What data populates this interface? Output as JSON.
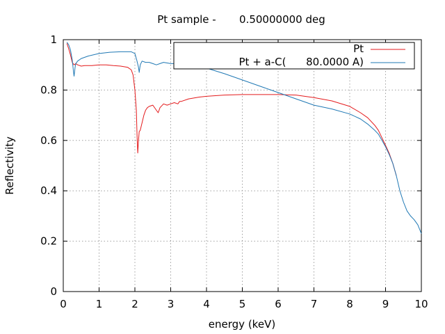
{
  "chart_data": {
    "type": "line",
    "title": "Pt sample -       0.50000000 deg",
    "xlabel": "energy (keV)",
    "ylabel": "Reflectivity",
    "xlim": [
      0,
      10
    ],
    "ylim": [
      0,
      1
    ],
    "x_ticks": [
      "0",
      "1",
      "2",
      "3",
      "4",
      "5",
      "6",
      "7",
      "8",
      "9",
      "10"
    ],
    "y_ticks": [
      "0",
      "0.2",
      "0.4",
      "0.6",
      "0.8",
      "1"
    ],
    "grid": true,
    "legend_position": "top-right",
    "series": [
      {
        "name": "Pt",
        "color": "#e41a1c",
        "x": [
          0.1,
          0.15,
          0.2,
          0.25,
          0.3,
          0.35,
          0.4,
          0.5,
          0.6,
          0.8,
          1.0,
          1.2,
          1.4,
          1.6,
          1.8,
          1.9,
          1.95,
          2.0,
          2.04,
          2.06,
          2.08,
          2.1,
          2.12,
          2.15,
          2.2,
          2.25,
          2.3,
          2.35,
          2.4,
          2.5,
          2.6,
          2.65,
          2.7,
          2.8,
          2.9,
          3.0,
          3.1,
          3.2,
          3.25,
          3.3,
          3.5,
          3.8,
          4.0,
          4.5,
          5.0,
          5.5,
          6.0,
          6.5,
          7.0,
          7.5,
          8.0,
          8.3,
          8.5,
          8.7,
          8.8,
          8.9,
          9.0,
          9.1,
          9.2,
          9.3
        ],
        "y": [
          0.985,
          0.965,
          0.94,
          0.91,
          0.9,
          0.905,
          0.9,
          0.895,
          0.897,
          0.897,
          0.9,
          0.9,
          0.897,
          0.895,
          0.89,
          0.88,
          0.86,
          0.8,
          0.72,
          0.62,
          0.55,
          0.6,
          0.635,
          0.64,
          0.67,
          0.7,
          0.72,
          0.73,
          0.735,
          0.74,
          0.72,
          0.71,
          0.73,
          0.745,
          0.74,
          0.745,
          0.75,
          0.745,
          0.755,
          0.755,
          0.765,
          0.772,
          0.775,
          0.78,
          0.782,
          0.782,
          0.782,
          0.78,
          0.77,
          0.757,
          0.735,
          0.71,
          0.69,
          0.66,
          0.64,
          0.61,
          0.58,
          0.55,
          0.51,
          0.46
        ]
      },
      {
        "name": "Pt + a-C(      80.0000 A)",
        "color": "#1f78b4",
        "x": [
          0.1,
          0.15,
          0.2,
          0.25,
          0.28,
          0.3,
          0.33,
          0.35,
          0.4,
          0.5,
          0.7,
          1.0,
          1.3,
          1.6,
          1.9,
          2.0,
          2.05,
          2.1,
          2.12,
          2.15,
          2.2,
          2.3,
          2.4,
          2.5,
          2.6,
          2.7,
          2.8,
          3.0,
          3.2,
          3.5,
          4.0,
          4.5,
          5.0,
          5.5,
          6.0,
          6.5,
          7.0,
          7.5,
          8.0,
          8.3,
          8.5,
          8.7,
          8.8,
          8.9,
          9.0,
          9.1,
          9.2,
          9.3,
          9.4,
          9.5,
          9.6,
          9.7,
          9.8,
          9.9,
          10.0
        ],
        "y": [
          0.99,
          0.98,
          0.96,
          0.92,
          0.88,
          0.855,
          0.89,
          0.905,
          0.915,
          0.925,
          0.935,
          0.945,
          0.95,
          0.952,
          0.952,
          0.945,
          0.92,
          0.89,
          0.87,
          0.9,
          0.915,
          0.91,
          0.91,
          0.905,
          0.9,
          0.905,
          0.91,
          0.905,
          0.905,
          0.9,
          0.887,
          0.865,
          0.84,
          0.815,
          0.79,
          0.765,
          0.74,
          0.725,
          0.705,
          0.685,
          0.665,
          0.64,
          0.625,
          0.6,
          0.575,
          0.545,
          0.51,
          0.46,
          0.4,
          0.355,
          0.32,
          0.3,
          0.285,
          0.265,
          0.23
        ]
      }
    ]
  }
}
